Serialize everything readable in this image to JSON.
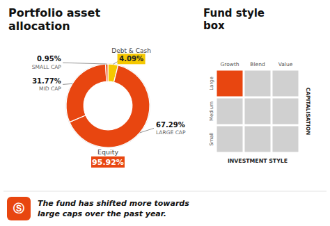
{
  "chart_data": [
    {
      "type": "donut",
      "title": "Portfolio asset\nallocation",
      "categories": [
        "Debt & Cash",
        "LARGE CAP",
        "MID CAP",
        "SMALL CAP"
      ],
      "values": [
        4.09,
        67.29,
        31.77,
        0.95
      ],
      "value_labels": [
        "4.09%",
        "67.29%",
        "31.77%",
        "0.95%"
      ],
      "colors": [
        "#F5C800",
        "#E84610",
        "#E84610",
        "#E84610"
      ],
      "data_labels": true,
      "annotations": [
        {
          "text": "Equity",
          "value": 95.92,
          "label": "95.92%",
          "color": "#E84610"
        }
      ]
    },
    {
      "type": "grid",
      "title": "Fund style\nbox",
      "categories": [
        "Growth",
        "Blend",
        "Value"
      ],
      "rows": [
        "Large",
        "Medium",
        "Small"
      ],
      "x_label": "INVESTMENT STYLE",
      "y_label": "CAPITALISATION",
      "colors": [
        [
          "#E84610",
          "#D0D0D0",
          "#D0D0D0"
        ],
        [
          "#D0D0D0",
          "#D0D0D0",
          "#D0D0D0"
        ],
        [
          "#D0D0D0",
          "#D0D0D0",
          "#D0D0D0"
        ]
      ]
    }
  ],
  "note": {
    "icon": "Ⓢ",
    "text": "The fund has shifted more towards\nlarge caps over the past year.",
    "color": "#E84610"
  }
}
